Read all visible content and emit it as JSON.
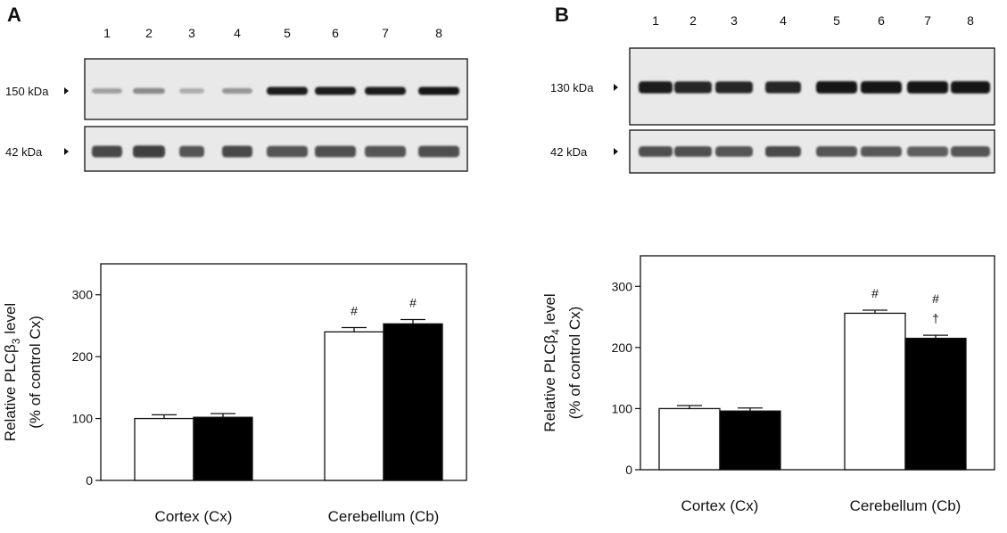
{
  "chart_data": [
    {
      "panel": "A",
      "type": "bar",
      "blot": {
        "lanes": [
          "1",
          "2",
          "3",
          "4",
          "5",
          "6",
          "7",
          "8"
        ],
        "rows": [
          {
            "label": "150 kDa",
            "intensity": [
              0.35,
              0.45,
              0.3,
              0.4,
              0.95,
              0.95,
              0.95,
              0.98
            ]
          },
          {
            "label": "42 kDa",
            "intensity": [
              0.75,
              0.8,
              0.7,
              0.75,
              0.7,
              0.72,
              0.7,
              0.72
            ]
          }
        ]
      },
      "categories": [
        "Cortex (Cx)",
        "Cerebellum (Cb)"
      ],
      "series": [
        {
          "fill": "#ffffff",
          "values": [
            100,
            240
          ],
          "errors": [
            6,
            7
          ]
        },
        {
          "fill": "#000000",
          "values": [
            102,
            253
          ],
          "errors": [
            6,
            7
          ]
        }
      ],
      "annotations": [
        {
          "category": 1,
          "series": 0,
          "text": "#"
        },
        {
          "category": 1,
          "series": 1,
          "text": "#"
        }
      ],
      "ylabel_line1_prefix": "Relative PLC",
      "ylabel_greek": "β",
      "ylabel_sub": "3",
      "ylabel_line1_suffix": " level",
      "ylabel_line2": "(% of control Cx)",
      "ylim": [
        0,
        350
      ],
      "yticks": [
        "0",
        "100",
        "200",
        "300"
      ],
      "grid": false
    },
    {
      "panel": "B",
      "type": "bar",
      "blot": {
        "lanes": [
          "1",
          "2",
          "3",
          "4",
          "5",
          "6",
          "7",
          "8"
        ],
        "rows": [
          {
            "label": "130 kDa",
            "intensity": [
              0.95,
              0.92,
              0.92,
              0.92,
              0.98,
              0.98,
              0.98,
              0.98
            ]
          },
          {
            "label": "42 kDa",
            "intensity": [
              0.72,
              0.72,
              0.7,
              0.75,
              0.7,
              0.68,
              0.65,
              0.7
            ]
          }
        ]
      },
      "categories": [
        "Cortex (Cx)",
        "Cerebellum (Cb)"
      ],
      "series": [
        {
          "fill": "#ffffff",
          "values": [
            100,
            256
          ],
          "errors": [
            5,
            5
          ]
        },
        {
          "fill": "#000000",
          "values": [
            96,
            215
          ],
          "errors": [
            5,
            5
          ]
        }
      ],
      "annotations": [
        {
          "category": 1,
          "series": 0,
          "text": "#"
        },
        {
          "category": 1,
          "series": 1,
          "text": "#"
        },
        {
          "category": 1,
          "series": 1,
          "text": "†"
        }
      ],
      "ylabel_line1_prefix": "Relative PLC",
      "ylabel_greek": "β",
      "ylabel_sub": "4",
      "ylabel_line1_suffix": " level",
      "ylabel_line2": "(% of control Cx)",
      "ylim": [
        0,
        350
      ],
      "yticks": [
        "0",
        "100",
        "200",
        "300"
      ],
      "grid": false
    }
  ]
}
